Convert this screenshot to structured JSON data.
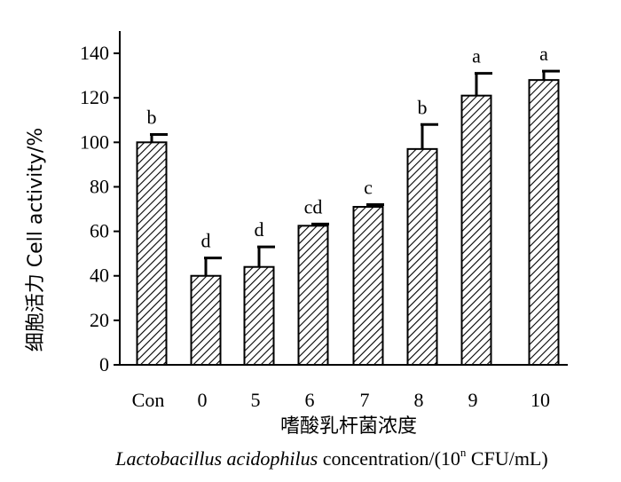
{
  "chart_data": {
    "type": "bar",
    "categories": [
      "Con",
      "0",
      "5",
      "6",
      "7",
      "8",
      "9",
      "10"
    ],
    "values": [
      100,
      40,
      44,
      62.5,
      71,
      97,
      121,
      128
    ],
    "errors": [
      3.5,
      8,
      9,
      0.8,
      1,
      11,
      10,
      4
    ],
    "significance": [
      "b",
      "d",
      "d",
      "cd",
      "c",
      "b",
      "a",
      "a"
    ],
    "ylim": [
      0,
      150
    ],
    "yticks": [
      0,
      20,
      40,
      60,
      80,
      100,
      120,
      140
    ],
    "ylabel": "细胞活力  Cell activity/%",
    "xlabel_cn": "嗜酸乳杆菌浓度",
    "xlabel_en_italic": "Lactobacillus acidophilus",
    "xlabel_en_rest": " concentration/(10",
    "xlabel_en_sup": "n",
    "xlabel_en_tail": " CFU/mL)",
    "bar_pattern": "diagonal-hatch",
    "bar_color": "#000000"
  }
}
